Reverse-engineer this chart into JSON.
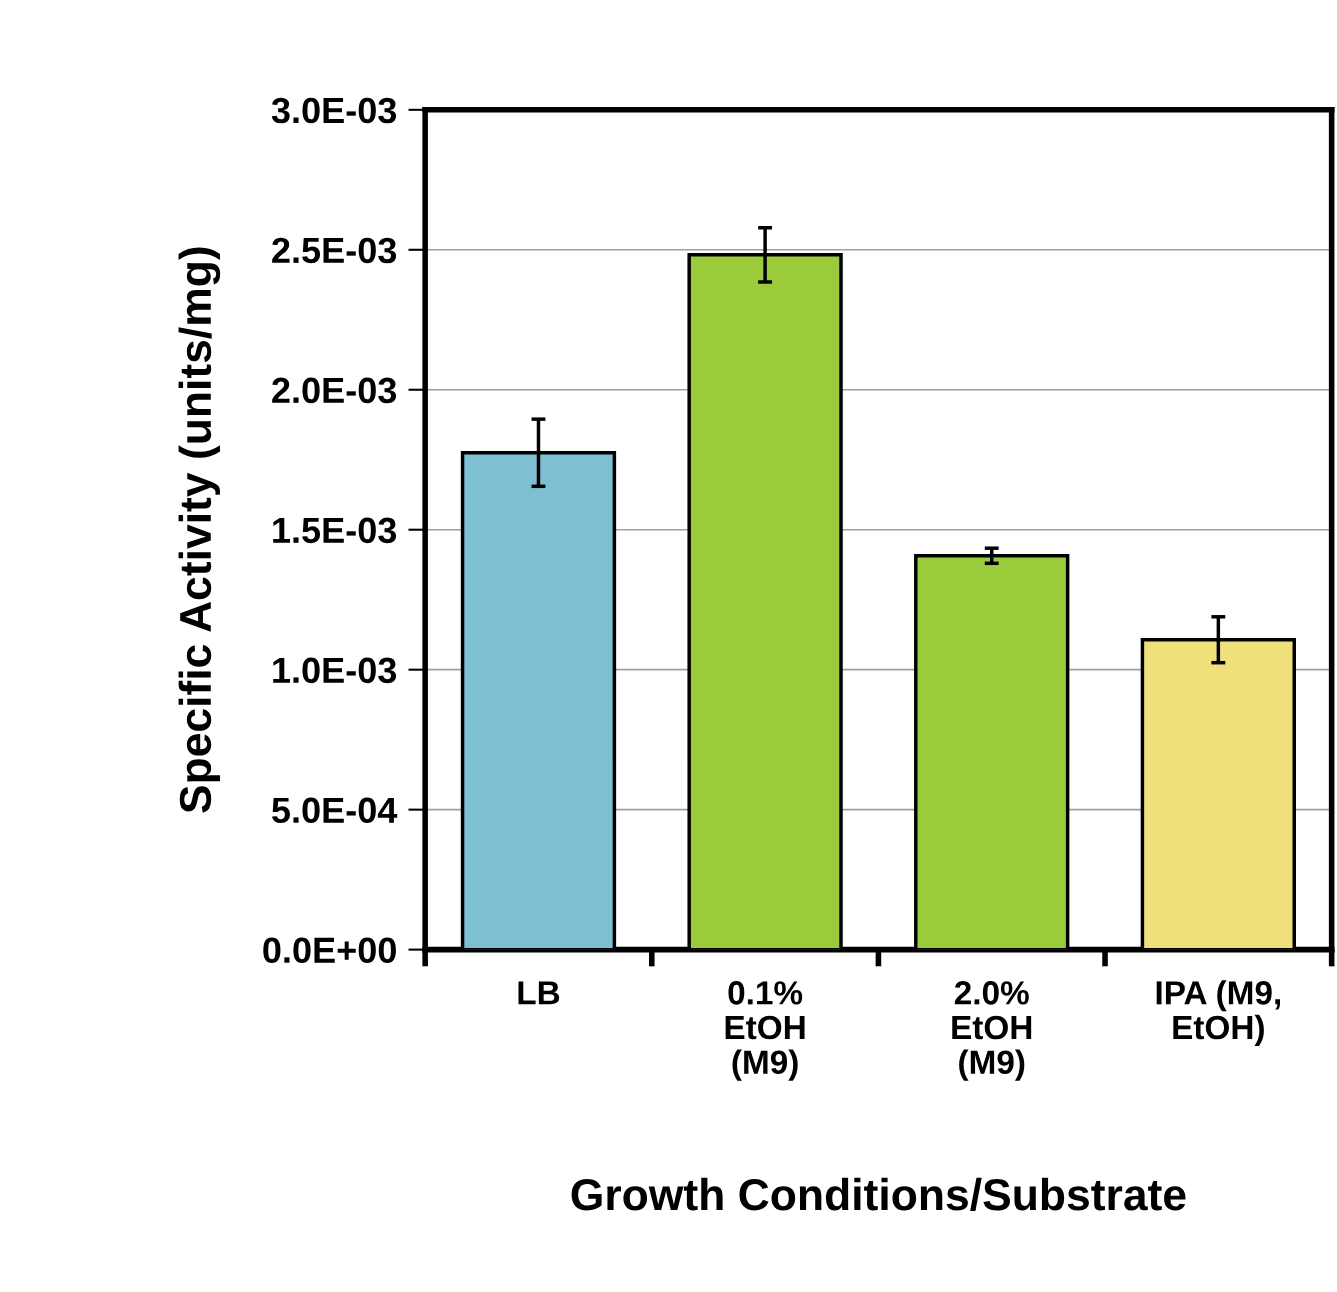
{
  "chart_data": {
    "type": "bar",
    "categories": [
      "LB",
      "0.1%\nEtOH\n(M9)",
      "2.0%\nEtOH\n(M9)",
      "IPA (M9,\nEtOH)"
    ],
    "values": [
      0.001775,
      0.002482,
      0.001407,
      0.001107
    ],
    "errors": [
      0.00012,
      9.7e-05,
      2.7e-05,
      8.2e-05
    ],
    "colors": [
      "#7fbfd3",
      "#9acb3a",
      "#9acb3a",
      "#efe07c"
    ],
    "xlabel": "Growth Conditions/Substrate",
    "ylabel": "Specific Activity (units/mg)",
    "ylim": [
      0,
      0.003
    ],
    "yticks": [
      {
        "value": 0,
        "label": "0.0E+00"
      },
      {
        "value": 0.0005,
        "label": "5.0E-04"
      },
      {
        "value": 0.001,
        "label": "1.0E-03"
      },
      {
        "value": 0.0015,
        "label": "1.5E-03"
      },
      {
        "value": 0.002,
        "label": "2.0E-03"
      },
      {
        "value": 0.0025,
        "label": "2.5E-03"
      },
      {
        "value": 0.003,
        "label": "3.0E-03"
      }
    ],
    "grid": "y"
  }
}
